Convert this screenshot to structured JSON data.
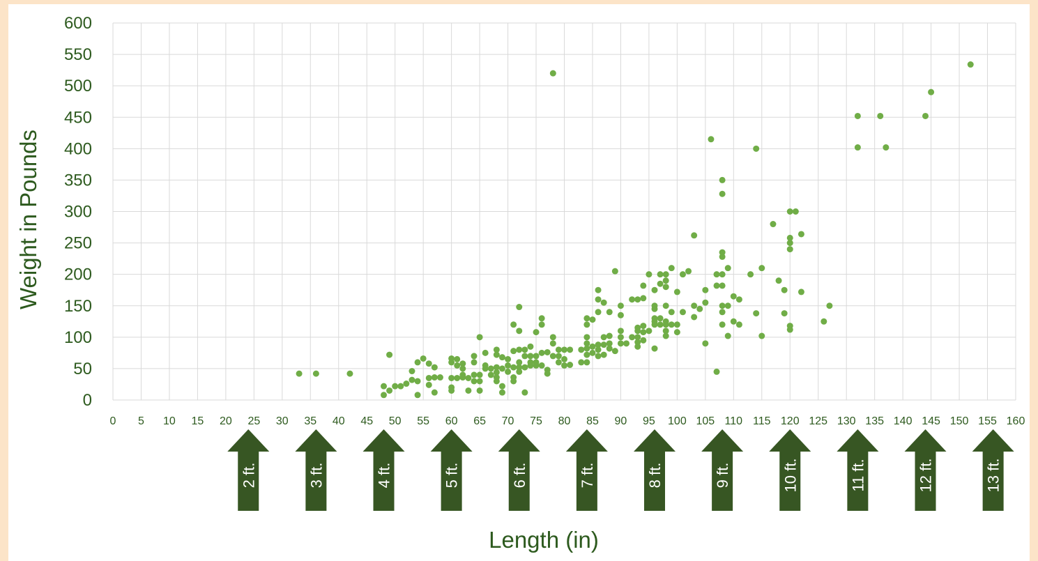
{
  "chart_data": {
    "type": "scatter",
    "xlabel": "Length (in)",
    "ylabel": "Weight in Pounds",
    "xlim": [
      0,
      160
    ],
    "ylim": [
      0,
      600
    ],
    "x_ticks": [
      "0",
      "5",
      "10",
      "15",
      "20",
      "25",
      "30",
      "35",
      "40",
      "45",
      "50",
      "55",
      "60",
      "65",
      "70",
      "75",
      "80",
      "85",
      "90",
      "95",
      "100",
      "105",
      "110",
      "115",
      "120",
      "125",
      "130",
      "135",
      "140",
      "145",
      "150",
      "155",
      "160"
    ],
    "y_ticks": [
      "0",
      "50",
      "100",
      "150",
      "200",
      "250",
      "300",
      "350",
      "400",
      "450",
      "500",
      "550",
      "600"
    ],
    "grid": true,
    "marker_color": "#70ad47",
    "points": [
      [
        33,
        42
      ],
      [
        36,
        42
      ],
      [
        42,
        42
      ],
      [
        48,
        22
      ],
      [
        48,
        8
      ],
      [
        49,
        72
      ],
      [
        49,
        15
      ],
      [
        50,
        22
      ],
      [
        51,
        22
      ],
      [
        52,
        26
      ],
      [
        53,
        32
      ],
      [
        53,
        46
      ],
      [
        54,
        60
      ],
      [
        54,
        30
      ],
      [
        54,
        8
      ],
      [
        55,
        66
      ],
      [
        56,
        58
      ],
      [
        56,
        35
      ],
      [
        56,
        24
      ],
      [
        57,
        52
      ],
      [
        57,
        36
      ],
      [
        57,
        12
      ],
      [
        58,
        36
      ],
      [
        60,
        66
      ],
      [
        60,
        60
      ],
      [
        60,
        35
      ],
      [
        60,
        20
      ],
      [
        60,
        15
      ],
      [
        61,
        65
      ],
      [
        61,
        55
      ],
      [
        61,
        35
      ],
      [
        62,
        58
      ],
      [
        62,
        40
      ],
      [
        62,
        50
      ],
      [
        62,
        36
      ],
      [
        63,
        35
      ],
      [
        63,
        15
      ],
      [
        64,
        70
      ],
      [
        64,
        60
      ],
      [
        64,
        30
      ],
      [
        64,
        40
      ],
      [
        65,
        100
      ],
      [
        65,
        40
      ],
      [
        65,
        30
      ],
      [
        65,
        15
      ],
      [
        66,
        55
      ],
      [
        66,
        50
      ],
      [
        66,
        75
      ],
      [
        67,
        50
      ],
      [
        67,
        40
      ],
      [
        68,
        80
      ],
      [
        68,
        72
      ],
      [
        68,
        52
      ],
      [
        68,
        44
      ],
      [
        68,
        36
      ],
      [
        68,
        30
      ],
      [
        69,
        68
      ],
      [
        69,
        50
      ],
      [
        69,
        22
      ],
      [
        69,
        12
      ],
      [
        70,
        65
      ],
      [
        70,
        55
      ],
      [
        70,
        45
      ],
      [
        71,
        120
      ],
      [
        71,
        78
      ],
      [
        71,
        52
      ],
      [
        71,
        36
      ],
      [
        71,
        30
      ],
      [
        72,
        148
      ],
      [
        72,
        110
      ],
      [
        72,
        80
      ],
      [
        72,
        60
      ],
      [
        72,
        52
      ],
      [
        72,
        45
      ],
      [
        73,
        80
      ],
      [
        73,
        70
      ],
      [
        73,
        52
      ],
      [
        73,
        12
      ],
      [
        74,
        85
      ],
      [
        74,
        70
      ],
      [
        74,
        60
      ],
      [
        74,
        55
      ],
      [
        75,
        108
      ],
      [
        75,
        70
      ],
      [
        75,
        60
      ],
      [
        75,
        55
      ],
      [
        76,
        130
      ],
      [
        76,
        120
      ],
      [
        76,
        75
      ],
      [
        76,
        55
      ],
      [
        77,
        76
      ],
      [
        77,
        48
      ],
      [
        77,
        42
      ],
      [
        78,
        520
      ],
      [
        78,
        100
      ],
      [
        78,
        90
      ],
      [
        78,
        70
      ],
      [
        79,
        80
      ],
      [
        79,
        70
      ],
      [
        79,
        60
      ],
      [
        80,
        80
      ],
      [
        80,
        65
      ],
      [
        80,
        55
      ],
      [
        81,
        80
      ],
      [
        81,
        56
      ],
      [
        83,
        80
      ],
      [
        83,
        60
      ],
      [
        84,
        130
      ],
      [
        84,
        120
      ],
      [
        84,
        100
      ],
      [
        84,
        90
      ],
      [
        84,
        82
      ],
      [
        84,
        72
      ],
      [
        84,
        60
      ],
      [
        85,
        128
      ],
      [
        85,
        85
      ],
      [
        85,
        75
      ],
      [
        86,
        175
      ],
      [
        86,
        160
      ],
      [
        86,
        140
      ],
      [
        86,
        88
      ],
      [
        86,
        80
      ],
      [
        86,
        70
      ],
      [
        87,
        155
      ],
      [
        87,
        100
      ],
      [
        87,
        88
      ],
      [
        87,
        72
      ],
      [
        88,
        140
      ],
      [
        88,
        102
      ],
      [
        88,
        90
      ],
      [
        88,
        82
      ],
      [
        89,
        205
      ],
      [
        89,
        78
      ],
      [
        90,
        150
      ],
      [
        90,
        135
      ],
      [
        90,
        110
      ],
      [
        90,
        100
      ],
      [
        90,
        90
      ],
      [
        91,
        90
      ],
      [
        92,
        160
      ],
      [
        92,
        100
      ],
      [
        93,
        160
      ],
      [
        93,
        115
      ],
      [
        93,
        110
      ],
      [
        93,
        100
      ],
      [
        93,
        92
      ],
      [
        93,
        85
      ],
      [
        94,
        182
      ],
      [
        94,
        162
      ],
      [
        94,
        118
      ],
      [
        94,
        108
      ],
      [
        94,
        95
      ],
      [
        95,
        200
      ],
      [
        95,
        110
      ],
      [
        96,
        175
      ],
      [
        96,
        150
      ],
      [
        96,
        145
      ],
      [
        96,
        130
      ],
      [
        96,
        125
      ],
      [
        96,
        120
      ],
      [
        96,
        82
      ],
      [
        97,
        200
      ],
      [
        97,
        185
      ],
      [
        97,
        130
      ],
      [
        97,
        120
      ],
      [
        98,
        200
      ],
      [
        98,
        190
      ],
      [
        98,
        180
      ],
      [
        98,
        150
      ],
      [
        98,
        125
      ],
      [
        98,
        120
      ],
      [
        98,
        110
      ],
      [
        98,
        102
      ],
      [
        99,
        210
      ],
      [
        99,
        140
      ],
      [
        99,
        120
      ],
      [
        100,
        172
      ],
      [
        100,
        120
      ],
      [
        100,
        108
      ],
      [
        101,
        200
      ],
      [
        101,
        140
      ],
      [
        102,
        205
      ],
      [
        103,
        262
      ],
      [
        103,
        150
      ],
      [
        103,
        132
      ],
      [
        104,
        145
      ],
      [
        105,
        175
      ],
      [
        105,
        155
      ],
      [
        105,
        90
      ],
      [
        106,
        415
      ],
      [
        107,
        200
      ],
      [
        107,
        182
      ],
      [
        107,
        45
      ],
      [
        108,
        350
      ],
      [
        108,
        328
      ],
      [
        108,
        235
      ],
      [
        108,
        228
      ],
      [
        108,
        200
      ],
      [
        108,
        182
      ],
      [
        108,
        150
      ],
      [
        108,
        140
      ],
      [
        108,
        120
      ],
      [
        109,
        210
      ],
      [
        109,
        150
      ],
      [
        109,
        102
      ],
      [
        110,
        165
      ],
      [
        110,
        125
      ],
      [
        111,
        160
      ],
      [
        111,
        120
      ],
      [
        113,
        200
      ],
      [
        114,
        400
      ],
      [
        114,
        138
      ],
      [
        115,
        210
      ],
      [
        115,
        102
      ],
      [
        117,
        280
      ],
      [
        118,
        190
      ],
      [
        119,
        175
      ],
      [
        119,
        138
      ],
      [
        120,
        300
      ],
      [
        120,
        258
      ],
      [
        120,
        250
      ],
      [
        120,
        240
      ],
      [
        120,
        118
      ],
      [
        120,
        112
      ],
      [
        121,
        300
      ],
      [
        122,
        264
      ],
      [
        122,
        172
      ],
      [
        126,
        125
      ],
      [
        127,
        150
      ],
      [
        132,
        452
      ],
      [
        132,
        402
      ],
      [
        136,
        452
      ],
      [
        137,
        402
      ],
      [
        144,
        452
      ],
      [
        145,
        490
      ],
      [
        152,
        534
      ]
    ],
    "feet_labels": [
      "2 ft.",
      "3 ft.",
      "4 ft.",
      "5 ft.",
      "6 ft.",
      "7 ft.",
      "8 ft.",
      "9 ft.",
      "10 ft.",
      "11 ft.",
      "12 ft.",
      "13 ft."
    ],
    "feet_positions_in": [
      24,
      36,
      48,
      60,
      72,
      84,
      96,
      108,
      120,
      132,
      144,
      156
    ],
    "arrow_color": "#375623"
  }
}
